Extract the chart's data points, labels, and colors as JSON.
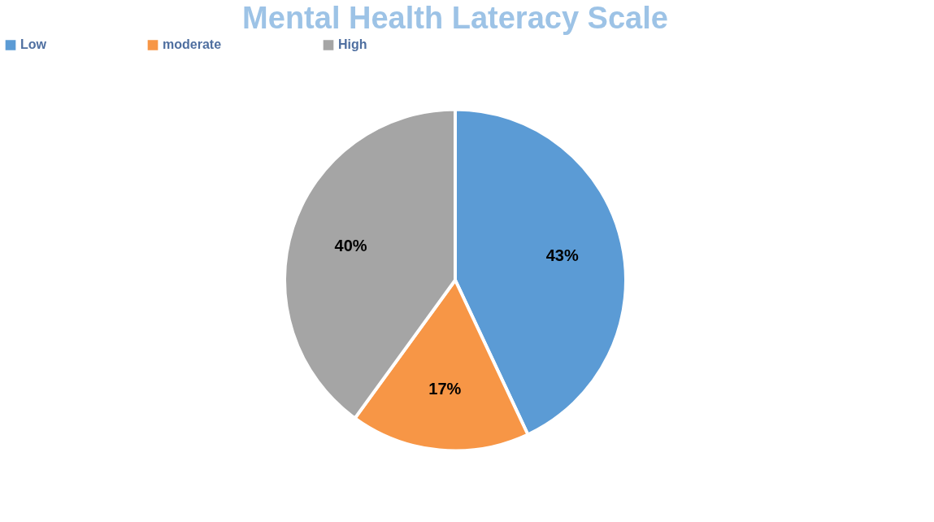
{
  "chart_data": {
    "type": "pie",
    "title": "Mental Health Lateracy Scale",
    "categories": [
      "Low",
      "moderate",
      "High"
    ],
    "values": [
      43,
      17,
      40
    ],
    "value_labels": [
      "43%",
      "17%",
      "40%"
    ],
    "colors": [
      "#5b9bd5",
      "#f79646",
      "#a5a5a5"
    ],
    "legend": "top"
  }
}
